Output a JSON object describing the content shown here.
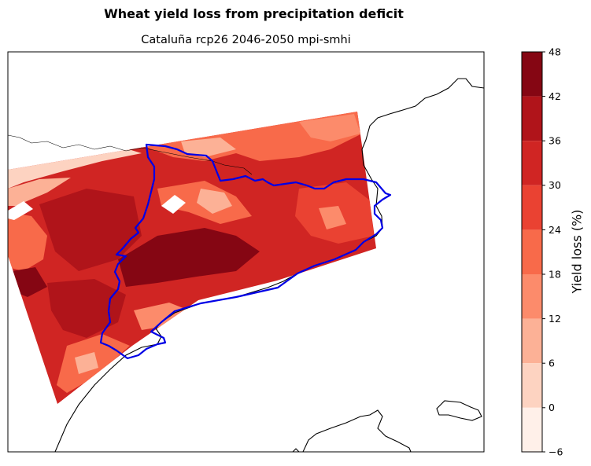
{
  "title": "Wheat yield loss from precipitation deficit",
  "subtitle": "Cataluña rcp26 2046-2050 mpi-smhi",
  "colorbar": {
    "label": "Yield loss (%)",
    "ticks": [
      "48",
      "42",
      "36",
      "30",
      "24",
      "18",
      "12",
      "6",
      "0",
      "−6"
    ],
    "levels": [
      {
        "from": -6,
        "to": 0,
        "color": "#fff0e9"
      },
      {
        "from": 0,
        "to": 6,
        "color": "#fdd3c1"
      },
      {
        "from": 6,
        "to": 12,
        "color": "#fcb196"
      },
      {
        "from": 12,
        "to": 18,
        "color": "#fc8b6b"
      },
      {
        "from": 18,
        "to": 24,
        "color": "#f86a4a"
      },
      {
        "from": 24,
        "to": 30,
        "color": "#ea4232"
      },
      {
        "from": 30,
        "to": 36,
        "color": "#d02523"
      },
      {
        "from": 36,
        "to": 42,
        "color": "#b0141a"
      },
      {
        "from": 42,
        "to": 48,
        "color": "#850613"
      }
    ]
  },
  "colors": {
    "region_border": "#0000e6",
    "coastline": "#000000"
  }
}
